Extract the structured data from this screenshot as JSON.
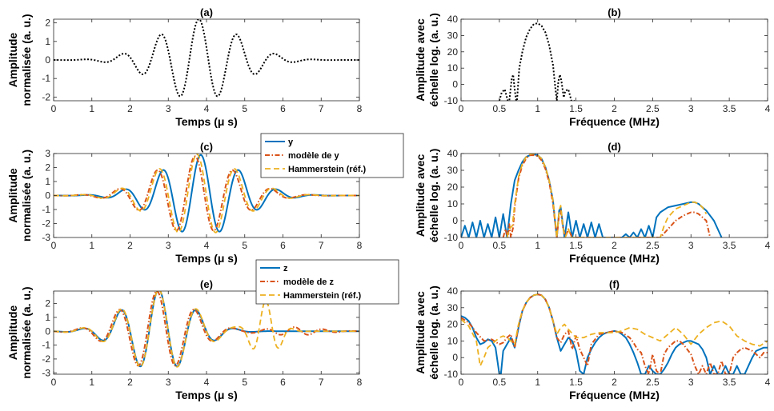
{
  "colors": {
    "blue": "#0072BD",
    "red": "#D95319",
    "yellow": "#EDB120",
    "black": "#000000"
  },
  "legends": [
    {
      "entries": [
        "y",
        "modèle de y",
        "Hammerstein (réf.)"
      ]
    },
    {
      "entries": [
        "z",
        "modèle de z",
        "Hammerstein (réf.)"
      ]
    }
  ],
  "chart_data": [
    {
      "id": "a",
      "type": "line",
      "title": "(a)",
      "xlabel": "Temps (μ s)",
      "ylabel": [
        "Amplitude",
        "normalisée (a. u.)"
      ],
      "xlim": [
        0,
        8
      ],
      "ylim": [
        -2.2,
        2.2
      ],
      "xticks": [
        0,
        1,
        2,
        3,
        4,
        5,
        6,
        7,
        8
      ],
      "yticks": [
        -2,
        -1,
        0,
        1,
        2
      ],
      "series": [
        {
          "style": "black-dotted",
          "model": "burst",
          "params": {
            "c": 3.8,
            "s": 1.45,
            "a": 2.2,
            "f": 1.0
          }
        }
      ]
    },
    {
      "id": "b",
      "type": "line",
      "title": "(b)",
      "xlabel": "Fréquence (MHz)",
      "ylabel": [
        "Amplitude avec",
        "échelle log. (a. u.)"
      ],
      "xlim": [
        0,
        4
      ],
      "ylim": [
        -10,
        40
      ],
      "xticks": [
        0,
        0.5,
        1,
        1.5,
        2,
        2.5,
        3,
        3.5,
        4
      ],
      "yticks": [
        -10,
        0,
        10,
        20,
        30,
        40
      ],
      "series": [
        {
          "style": "black-dotted",
          "x": [
            0.5,
            0.53,
            0.57,
            0.61,
            0.63,
            0.66,
            0.68,
            0.7,
            0.72,
            0.73,
            0.76,
            0.8,
            0.85,
            0.9,
            0.95,
            1.0,
            1.05,
            1.1,
            1.15,
            1.2,
            1.23,
            1.25,
            1.27,
            1.29,
            1.31,
            1.34,
            1.36,
            1.4,
            1.44,
            1.48
          ],
          "y": [
            -10,
            -5,
            -3,
            -10,
            -10,
            3,
            6,
            -3,
            -10,
            -10,
            10,
            20,
            29,
            34,
            37,
            37.5,
            36,
            32,
            24,
            12,
            -2,
            -10,
            2,
            6,
            2,
            -8,
            -4,
            -3,
            -10,
            -10
          ]
        }
      ]
    },
    {
      "id": "c",
      "type": "line",
      "title": "(c)",
      "xlabel": "Temps (μ s)",
      "ylabel": [
        "Amplitude",
        "normalisée (a. u.)"
      ],
      "xlim": [
        0,
        8
      ],
      "ylim": [
        -3,
        3
      ],
      "xticks": [
        0,
        1,
        2,
        3,
        4,
        5,
        6,
        7,
        8
      ],
      "yticks": [
        -3,
        -2,
        -1,
        0,
        1,
        2,
        3
      ],
      "series": [
        {
          "name": "y",
          "style": "blue-solid",
          "model": "burst",
          "params": {
            "c": 3.85,
            "s": 1.45,
            "a": 2.9,
            "f": 1.0
          }
        },
        {
          "name": "modèle de y",
          "style": "red-dashdot",
          "model": "burst",
          "params": {
            "c": 3.7,
            "s": 1.5,
            "a": 2.8,
            "f": 1.0
          }
        },
        {
          "name": "Hammerstein (réf.)",
          "style": "yellow-dashed",
          "model": "burst",
          "params": {
            "c": 3.75,
            "s": 1.5,
            "a": 2.95,
            "f": 1.0
          }
        }
      ]
    },
    {
      "id": "d",
      "type": "line",
      "title": "(d)",
      "xlabel": "Fréquence (MHz)",
      "ylabel": [
        "Amplitude avec",
        "échelle log. (a. u.)"
      ],
      "xlim": [
        0,
        4
      ],
      "ylim": [
        -10,
        40
      ],
      "xticks": [
        0,
        0.5,
        1,
        1.5,
        2,
        2.5,
        3,
        3.5,
        4
      ],
      "yticks": [
        -10,
        0,
        10,
        20,
        30,
        40
      ],
      "series": [
        {
          "name": "y",
          "style": "blue-solid",
          "x": [
            0,
            0.05,
            0.1,
            0.15,
            0.2,
            0.25,
            0.3,
            0.35,
            0.4,
            0.45,
            0.5,
            0.55,
            0.6,
            0.65,
            0.7,
            0.75,
            0.8,
            0.85,
            0.9,
            0.95,
            1.0,
            1.05,
            1.1,
            1.15,
            1.2,
            1.23,
            1.25,
            1.28,
            1.3,
            1.35,
            1.4,
            1.45,
            1.5,
            1.55,
            1.6,
            1.65,
            1.7,
            1.75,
            1.8,
            1.85,
            2.1,
            2.15,
            2.2,
            2.25,
            2.3,
            2.35,
            2.4,
            2.45,
            2.5,
            2.55,
            2.6,
            2.7,
            2.8,
            2.9,
            3.0,
            3.05,
            3.1,
            3.15,
            3.2,
            3.3,
            3.35,
            3.4
          ],
          "y": [
            -10,
            -3,
            -10,
            -1,
            -10,
            0,
            -10,
            -2,
            -10,
            2,
            -10,
            4,
            -10,
            10,
            24,
            30,
            35,
            38,
            39,
            39.5,
            39,
            37,
            32,
            24,
            12,
            -2,
            -10,
            6,
            8,
            -10,
            5,
            -10,
            0,
            -10,
            -2,
            -10,
            -1,
            -10,
            -2,
            -10,
            -10,
            -8,
            -10,
            -7,
            -10,
            -5,
            -10,
            -3,
            -10,
            2,
            5,
            8,
            9,
            10,
            11,
            11,
            10,
            8,
            6,
            0,
            -5,
            -10
          ]
        },
        {
          "name": "modèle de y",
          "style": "red-dashdot",
          "x": [
            0.55,
            0.58,
            0.61,
            0.63,
            0.65,
            0.68,
            0.7,
            0.75,
            0.8,
            0.85,
            0.9,
            0.95,
            1.0,
            1.05,
            1.1,
            1.15,
            1.2,
            1.23,
            1.25,
            1.28,
            1.3,
            1.33,
            1.36,
            1.4,
            1.45,
            2.6,
            2.7,
            2.8,
            2.9,
            3.0,
            3.05,
            3.1,
            3.15,
            3.2,
            3.25
          ],
          "y": [
            -10,
            -5,
            -10,
            -2,
            -10,
            -4,
            8,
            25,
            33,
            37,
            39,
            39,
            38.5,
            36,
            31,
            23,
            10,
            -2,
            -10,
            4,
            6,
            -4,
            -10,
            -5,
            -10,
            -10,
            -5,
            0,
            3,
            5,
            5,
            4,
            2,
            0,
            -10
          ]
        },
        {
          "name": "Hammerstein (réf.)",
          "style": "yellow-dashed",
          "x": [
            0.6,
            0.63,
            0.67,
            0.7,
            0.75,
            0.8,
            0.85,
            0.9,
            0.95,
            1.0,
            1.05,
            1.1,
            1.15,
            1.2,
            1.23,
            1.25,
            1.28,
            1.3,
            1.33,
            1.36,
            1.4,
            1.44,
            2.6,
            2.65,
            2.7,
            2.8,
            2.9,
            3.0,
            3.05,
            3.1,
            3.15,
            3.2
          ],
          "y": [
            -10,
            -5,
            -3,
            10,
            26,
            34,
            38,
            39.5,
            40,
            39,
            37,
            32,
            24,
            12,
            0,
            -10,
            6,
            9,
            -4,
            -10,
            -5,
            -10,
            -10,
            -3,
            2,
            7,
            9,
            11,
            11,
            10,
            8,
            4
          ]
        }
      ]
    },
    {
      "id": "e",
      "type": "line",
      "title": "(e)",
      "xlabel": "Temps (μ s)",
      "ylabel": [
        "Amplitude",
        "normalisée (a. u.)"
      ],
      "xlim": [
        0,
        8
      ],
      "ylim": [
        -3.1,
        2.9
      ],
      "xticks": [
        0,
        1,
        2,
        3,
        4,
        5,
        6,
        7,
        8
      ],
      "yticks": [
        -3,
        -2,
        -1,
        0,
        1,
        2
      ],
      "series": [
        {
          "name": "z",
          "style": "blue-solid",
          "model": "burst",
          "params": {
            "c": 2.75,
            "s": 1.2,
            "a": 3.0,
            "f": 1.0
          }
        },
        {
          "name": "modèle de z",
          "style": "red-dashdot",
          "model": "burst",
          "params": {
            "c": 2.7,
            "s": 1.25,
            "a": 2.9,
            "f": 1.0,
            "tail": 0.3
          }
        },
        {
          "name": "Hammerstein (réf.)",
          "style": "yellow-dashed",
          "model": "burst",
          "params": {
            "c": 2.75,
            "s": 1.25,
            "a": 3.0,
            "f": 1.0,
            "tail": 2.2,
            "tailc": 5.55,
            "tails": 0.45
          }
        }
      ]
    },
    {
      "id": "f",
      "type": "line",
      "title": "(f)",
      "xlabel": "Fréquence (MHz)",
      "ylabel": [
        "Amplitude avec",
        "échelle log. (a. u.)"
      ],
      "xlim": [
        0,
        4
      ],
      "ylim": [
        -10,
        40
      ],
      "xticks": [
        0,
        0.5,
        1,
        1.5,
        2,
        2.5,
        3,
        3.5,
        4
      ],
      "yticks": [
        -10,
        0,
        10,
        20,
        30,
        40
      ],
      "series": [
        {
          "name": "z",
          "style": "blue-solid",
          "x": [
            0,
            0.05,
            0.1,
            0.15,
            0.2,
            0.25,
            0.3,
            0.35,
            0.4,
            0.45,
            0.5,
            0.52,
            0.55,
            0.6,
            0.65,
            0.7,
            0.75,
            0.8,
            0.85,
            0.9,
            0.95,
            1.0,
            1.05,
            1.1,
            1.15,
            1.2,
            1.25,
            1.3,
            1.35,
            1.4,
            1.45,
            1.5,
            1.55,
            1.6,
            1.65,
            1.7,
            1.75,
            1.8,
            1.85,
            1.9,
            1.95,
            2.0,
            2.05,
            2.1,
            2.15,
            2.2,
            2.25,
            2.3,
            2.35,
            2.4,
            2.45,
            2.5,
            2.55,
            2.6,
            2.65,
            2.7,
            2.75,
            2.8,
            2.85,
            2.9,
            2.95,
            3.0,
            3.05,
            3.1,
            3.15,
            3.2,
            3.25,
            3.3,
            3.35,
            3.4,
            3.45,
            3.5,
            3.55,
            3.6,
            3.65,
            3.7,
            3.75,
            3.8,
            3.85,
            3.9,
            3.95,
            4.0
          ],
          "y": [
            25,
            24,
            22,
            18,
            12,
            8,
            9,
            11,
            10,
            6,
            -10,
            -10,
            4,
            8,
            12,
            6,
            18,
            28,
            33,
            36,
            37.5,
            38,
            37.5,
            35,
            30,
            22,
            12,
            4,
            8,
            12,
            10,
            4,
            -8,
            -10,
            0,
            5,
            9,
            12,
            14,
            15,
            15.5,
            16,
            15.5,
            14,
            12,
            8,
            3,
            -3,
            -10,
            -10,
            -5,
            -8,
            -10,
            -10,
            -7,
            -3,
            2,
            6,
            8,
            9,
            10,
            10,
            9,
            8,
            5,
            0,
            -10,
            -5,
            -10,
            -10,
            -5,
            -10,
            -10,
            -5,
            -10,
            -10,
            -5,
            0,
            4,
            5,
            6,
            6
          ]
        },
        {
          "name": "modèle de z",
          "style": "red-dashdot",
          "x": [
            0,
            0.1,
            0.2,
            0.3,
            0.4,
            0.5,
            0.55,
            0.6,
            0.65,
            0.7,
            0.75,
            0.8,
            0.85,
            0.9,
            0.95,
            1.0,
            1.05,
            1.1,
            1.15,
            1.2,
            1.25,
            1.3,
            1.35,
            1.4,
            1.45,
            1.5,
            1.55,
            1.6,
            1.65,
            1.7,
            1.8,
            1.9,
            2.0,
            2.1,
            2.2,
            2.25,
            2.3,
            2.35,
            2.4,
            2.45,
            2.5,
            2.55,
            2.6,
            2.65,
            2.7,
            2.75,
            2.8,
            2.85,
            2.9,
            2.95,
            3.0,
            3.05,
            3.1,
            3.15,
            3.2,
            3.25,
            3.3,
            3.35,
            3.4,
            3.45,
            3.5,
            3.55,
            3.6,
            3.65,
            3.7,
            3.75,
            3.8,
            3.85,
            3.9,
            3.95,
            4.0
          ],
          "y": [
            24,
            21,
            15,
            10,
            11,
            8,
            9,
            12,
            14,
            6,
            19,
            28,
            33,
            36,
            37.5,
            38,
            37.5,
            35,
            30,
            22,
            12,
            9,
            14,
            16,
            5,
            13,
            5,
            0,
            -5,
            8,
            14,
            15,
            16,
            15,
            12,
            9,
            5,
            3,
            -5,
            -10,
            2,
            -8,
            -10,
            2,
            6,
            8,
            10,
            10,
            8,
            5,
            2,
            -5,
            -10,
            -5,
            -10,
            -3,
            -10,
            -10,
            -2,
            -10,
            -10,
            0,
            3,
            5,
            6,
            5,
            4,
            2,
            0,
            3,
            3
          ]
        },
        {
          "name": "Hammerstein (réf.)",
          "style": "yellow-dashed",
          "x": [
            0,
            0.1,
            0.2,
            0.25,
            0.3,
            0.35,
            0.4,
            0.45,
            0.5,
            0.55,
            0.6,
            0.65,
            0.7,
            0.75,
            0.8,
            0.85,
            0.9,
            0.95,
            1.0,
            1.05,
            1.1,
            1.15,
            1.2,
            1.25,
            1.3,
            1.35,
            1.4,
            1.5,
            1.6,
            1.7,
            1.8,
            1.9,
            2.0,
            2.1,
            2.2,
            2.3,
            2.4,
            2.5,
            2.6,
            2.7,
            2.8,
            2.9,
            3.0,
            3.1,
            3.2,
            3.3,
            3.4,
            3.5,
            3.6,
            3.7,
            3.8,
            3.9,
            4.0
          ],
          "y": [
            23,
            19,
            10,
            -5,
            0,
            6,
            8,
            10,
            12,
            13,
            12,
            10,
            8,
            20,
            28,
            33,
            36,
            37.5,
            38,
            37.5,
            35,
            30,
            22,
            14,
            18,
            20,
            17,
            12,
            12,
            14,
            15,
            15,
            15,
            16,
            18,
            17,
            14,
            12,
            10,
            14,
            18,
            14,
            8,
            14,
            18,
            21,
            22,
            19,
            13,
            10,
            8,
            7,
            10
          ]
        }
      ]
    }
  ]
}
